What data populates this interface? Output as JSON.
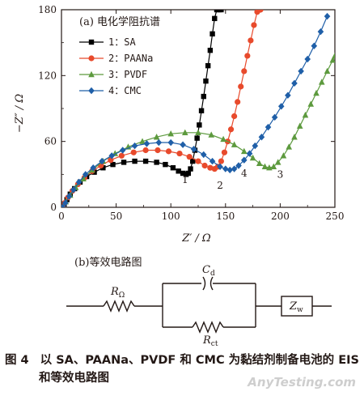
{
  "chart_data": {
    "type": "line",
    "panel_label": "(a) 电化学阻抗谱",
    "xlabel": "Z′ / Ω",
    "ylabel": "−Z″ / Ω",
    "xlim": [
      0,
      250
    ],
    "ylim": [
      0,
      180
    ],
    "xticks": [
      0,
      50,
      100,
      150,
      200,
      250
    ],
    "yticks": [
      0,
      60,
      120,
      180
    ],
    "grid": false,
    "legend_position": "top-left",
    "series": [
      {
        "name": "1：SA",
        "label": "1",
        "color": "#000000",
        "marker": "square",
        "x": [
          1,
          2.5,
          5,
          8,
          12,
          17,
          23,
          30,
          38,
          47,
          57,
          67,
          77,
          87,
          95,
          102,
          107,
          111,
          114,
          116,
          118,
          120,
          122,
          124,
          126,
          128,
          130,
          132,
          134,
          136,
          138,
          140,
          142,
          144,
          146
        ],
        "y": [
          0,
          3,
          7,
          12,
          17,
          23,
          28,
          32,
          36,
          39,
          41,
          42,
          42,
          41,
          39,
          36,
          33,
          31,
          30,
          31,
          35,
          42,
          52,
          63,
          75,
          88,
          101,
          115,
          129,
          143,
          158,
          172,
          180,
          180,
          180
        ]
      },
      {
        "name": "2：PAANa",
        "label": "2",
        "color": "#e84a2c",
        "marker": "circle",
        "x": [
          1,
          3,
          6,
          10,
          15,
          21,
          28,
          36,
          45,
          55,
          66,
          77,
          88,
          98,
          108,
          117,
          125,
          131,
          136,
          140,
          143,
          146,
          149,
          152,
          155,
          158,
          161,
          164,
          167,
          170,
          173,
          176,
          179,
          182
        ],
        "y": [
          0,
          4,
          9,
          15,
          21,
          27,
          33,
          38,
          43,
          47,
          50,
          52,
          52,
          51,
          49,
          46,
          42,
          38,
          36,
          35,
          37,
          42,
          50,
          60,
          71,
          83,
          96,
          110,
          124,
          138,
          152,
          166,
          178,
          180
        ]
      },
      {
        "name": "3：PVDF",
        "label": "3",
        "color": "#5d9a3e",
        "marker": "triangle",
        "x": [
          1,
          4,
          8,
          13,
          20,
          28,
          38,
          49,
          61,
          74,
          87,
          100,
          113,
          125,
          137,
          148,
          158,
          167,
          175,
          181,
          186,
          190,
          194,
          198,
          203,
          208,
          213,
          218,
          223,
          228,
          233,
          238,
          243,
          248,
          250
        ],
        "y": [
          0,
          5,
          11,
          18,
          26,
          34,
          42,
          49,
          55,
          60,
          64,
          67,
          68,
          68,
          66,
          62,
          57,
          51,
          45,
          40,
          37,
          36,
          37,
          41,
          47,
          55,
          64,
          74,
          84,
          94,
          104,
          114,
          124,
          134,
          138
        ]
      },
      {
        "name": "4：CMC",
        "label": "4",
        "color": "#1f5fa8",
        "marker": "diamond",
        "x": [
          1,
          3.5,
          7,
          11,
          16,
          22,
          29,
          37,
          46,
          56,
          67,
          78,
          89,
          100,
          111,
          121,
          130,
          138,
          145,
          150,
          154,
          158,
          162,
          167,
          172,
          177,
          183,
          189,
          195,
          201,
          207,
          213,
          219,
          225,
          231,
          237,
          243
        ],
        "y": [
          0,
          4,
          10,
          16,
          23,
          30,
          36,
          42,
          47,
          52,
          56,
          58,
          59,
          59,
          57,
          53,
          48,
          42,
          37,
          35,
          34,
          35,
          38,
          43,
          49,
          56,
          64,
          73,
          82,
          92,
          102,
          113,
          124,
          135,
          147,
          160,
          174
        ]
      }
    ]
  },
  "circuit": {
    "panel_label": "(b)等效电路图",
    "r_omega": {
      "main": "R",
      "sub": "Ω"
    },
    "cd": {
      "main": "C",
      "sub": "d"
    },
    "rct": {
      "main": "R",
      "sub": "ct"
    },
    "zw": {
      "main": "Z",
      "sub": "w"
    }
  },
  "caption": {
    "number": "图 4",
    "line1": "以 SA、PAANa、PVDF 和 CMC 为黏结剂制备电池的 EIS",
    "line2": "和等效电路图"
  },
  "watermark": "AnyTesting.com"
}
